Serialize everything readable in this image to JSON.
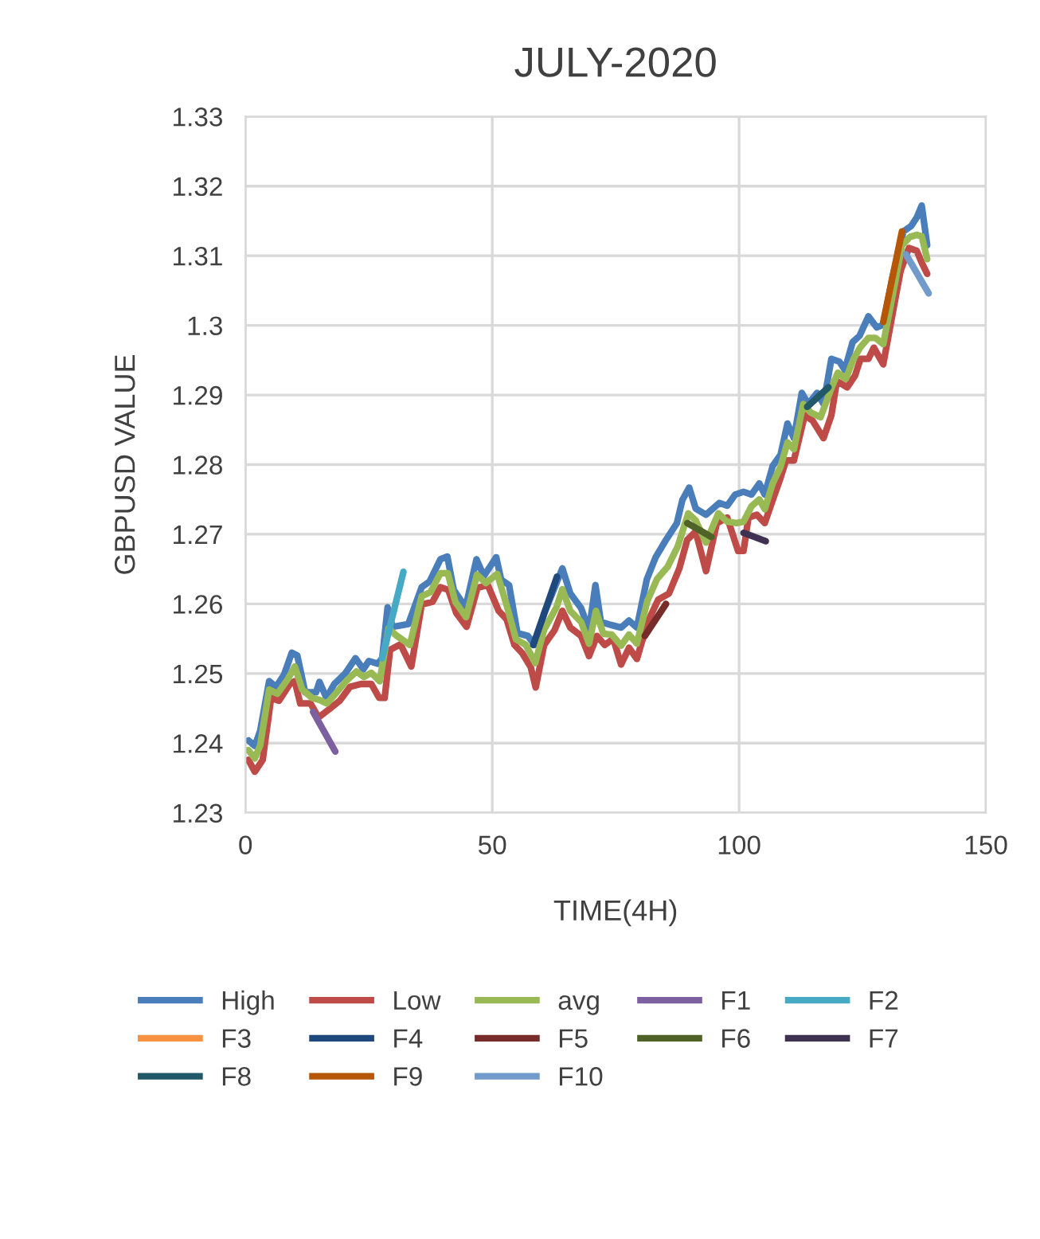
{
  "chart_data": {
    "type": "line",
    "title": "JULY-2020",
    "xlabel": "TIME(4H)",
    "ylabel": "GBPUSD VALUE",
    "xlim": [
      0,
      150
    ],
    "xticks": [
      0,
      50,
      100,
      150
    ],
    "ylim": [
      1.23,
      1.33
    ],
    "yticks": [
      1.23,
      1.24,
      1.25,
      1.26,
      1.27,
      1.28,
      1.29,
      1.3,
      1.31,
      1.32,
      1.33
    ],
    "grid": true,
    "legend": "bottom",
    "marker": "none",
    "line_style": "solid",
    "series": [
      {
        "name": "High",
        "color": "#4a7ebb",
        "x": [
          0.6,
          1.9,
          3.0,
          4.8,
          6.2,
          7.8,
          9.4,
          10.5,
          12.1,
          14.3,
          15.0,
          16.4,
          18.0,
          20.2,
          22.3,
          23.9,
          25.0,
          26.8,
          27.7,
          28.8,
          29.8,
          33.0,
          35.7,
          37.3,
          39.5,
          40.9,
          42.2,
          44.6,
          46.8,
          48.3,
          50.8,
          51.8,
          53.4,
          55.1,
          57.2,
          58.6,
          60.5,
          64.2,
          65.8,
          68.0,
          69.6,
          70.9,
          72.0,
          73.9,
          76.1,
          77.7,
          79.3,
          81.3,
          83.1,
          85.2,
          87.4,
          88.5,
          89.9,
          91.2,
          93.3,
          96.0,
          97.6,
          99.2,
          100.9,
          102.5,
          104.1,
          105.2,
          106.8,
          108.4,
          109.8,
          111.1,
          112.7,
          114.0,
          115.8,
          117.1,
          118.7,
          120.3,
          121.4,
          123.0,
          124.4,
          126.2,
          127.9,
          129.2,
          131.1,
          133.3,
          134.9,
          136.0,
          137.0,
          138.1
        ],
        "values": [
          1.2404,
          1.2396,
          1.2418,
          1.2489,
          1.2481,
          1.2498,
          1.253,
          1.2526,
          1.2473,
          1.2473,
          1.2488,
          1.2465,
          1.2485,
          1.25,
          1.2522,
          1.2506,
          1.2518,
          1.2514,
          1.2522,
          1.2595,
          1.2567,
          1.2571,
          1.2624,
          1.2632,
          1.2664,
          1.2668,
          1.262,
          1.2595,
          1.2664,
          1.264,
          1.2667,
          1.2635,
          1.2627,
          1.2558,
          1.2554,
          1.2541,
          1.2586,
          1.2651,
          1.2615,
          1.2594,
          1.2562,
          1.2627,
          1.2574,
          1.257,
          1.2566,
          1.2576,
          1.2566,
          1.2635,
          1.2667,
          1.2692,
          1.2716,
          1.2749,
          1.2767,
          1.2737,
          1.2728,
          1.2745,
          1.2741,
          1.2757,
          1.2761,
          1.2757,
          1.2773,
          1.2757,
          1.2798,
          1.2814,
          1.2859,
          1.2838,
          1.2903,
          1.2887,
          1.2903,
          1.2887,
          1.2952,
          1.2948,
          1.2936,
          1.2976,
          1.2985,
          1.3013,
          1.2997,
          1.3001,
          1.307,
          1.3135,
          1.3143,
          1.3155,
          1.3172,
          1.3115
        ]
      },
      {
        "name": "Low",
        "color": "#be4b48",
        "x": [
          0.6,
          1.9,
          3.5,
          5.2,
          6.8,
          9.0,
          10.0,
          11.1,
          13.2,
          14.8,
          17.0,
          19.1,
          21.2,
          23.4,
          25.5,
          27.1,
          28.2,
          29.3,
          31.4,
          33.6,
          35.7,
          37.9,
          39.5,
          41.1,
          42.7,
          44.8,
          47.0,
          49.1,
          51.3,
          52.9,
          54.5,
          56.1,
          57.8,
          58.8,
          60.5,
          62.6,
          64.2,
          65.8,
          68.0,
          69.6,
          71.2,
          72.8,
          74.5,
          76.1,
          77.7,
          79.3,
          81.5,
          83.6,
          85.8,
          87.9,
          89.5,
          91.2,
          93.3,
          95.5,
          97.6,
          99.8,
          100.9,
          101.9,
          103.6,
          105.2,
          106.8,
          108.4,
          109.5,
          111.1,
          113.3,
          114.9,
          117.1,
          118.7,
          119.8,
          121.9,
          123.5,
          124.6,
          126.2,
          127.3,
          129.2,
          131.1,
          132.7,
          134.4,
          136.0,
          137.0,
          138.1
        ],
        "values": [
          1.2376,
          1.2359,
          1.2376,
          1.2465,
          1.2461,
          1.2485,
          1.2489,
          1.2457,
          1.2457,
          1.2437,
          1.2449,
          1.2461,
          1.2481,
          1.2485,
          1.2485,
          1.2465,
          1.2465,
          1.2534,
          1.2542,
          1.251,
          1.2599,
          1.2603,
          1.2624,
          1.262,
          1.2587,
          1.2567,
          1.2623,
          1.2627,
          1.259,
          1.2578,
          1.2541,
          1.2529,
          1.2509,
          1.248,
          1.2541,
          1.2562,
          1.259,
          1.2566,
          1.2554,
          1.2525,
          1.2554,
          1.2541,
          1.255,
          1.2513,
          1.2537,
          1.2521,
          1.2574,
          1.2606,
          1.2615,
          1.2651,
          1.2692,
          1.2704,
          1.2647,
          1.2716,
          1.2724,
          1.2676,
          1.2676,
          1.2724,
          1.2728,
          1.2716,
          1.2749,
          1.2781,
          1.2806,
          1.2806,
          1.2871,
          1.2863,
          1.2838,
          1.2871,
          1.292,
          1.2911,
          1.2928,
          1.2952,
          1.2952,
          1.2968,
          1.2944,
          1.3017,
          1.3078,
          1.3111,
          1.3107,
          1.309,
          1.3074
        ]
      },
      {
        "name": "avg",
        "color": "#98b954",
        "x": [
          0.6,
          1.9,
          3.0,
          4.8,
          6.5,
          8.5,
          10.0,
          11.5,
          13.5,
          15.0,
          16.5,
          18.5,
          20.5,
          22.5,
          24.0,
          25.5,
          27.2,
          29.0,
          30.5,
          33.3,
          35.7,
          37.5,
          39.5,
          41.0,
          42.5,
          44.7,
          46.9,
          48.7,
          51.0,
          52.8,
          54.8,
          56.8,
          58.7,
          60.5,
          63.0,
          64.2,
          65.8,
          68.0,
          69.6,
          71.0,
          72.5,
          74.2,
          76.1,
          77.7,
          79.3,
          81.4,
          83.4,
          85.5,
          87.6,
          89.7,
          91.2,
          93.3,
          95.8,
          97.6,
          99.5,
          100.9,
          102.5,
          104.1,
          105.2,
          106.8,
          108.4,
          109.8,
          111.1,
          113.0,
          114.5,
          116.5,
          118.7,
          120.0,
          121.6,
          123.2,
          124.5,
          126.2,
          127.6,
          129.2,
          131.1,
          133.0,
          134.6,
          136.0,
          137.0,
          138.1
        ],
        "values": [
          1.239,
          1.2378,
          1.2397,
          1.2477,
          1.2471,
          1.2491,
          1.251,
          1.2477,
          1.2465,
          1.2462,
          1.2457,
          1.2473,
          1.249,
          1.2503,
          1.2495,
          1.2501,
          1.2489,
          1.2565,
          1.2555,
          1.2541,
          1.2611,
          1.2617,
          1.2644,
          1.2644,
          1.2603,
          1.2581,
          1.2642,
          1.263,
          1.2643,
          1.2601,
          1.2549,
          1.2541,
          1.2515,
          1.2563,
          1.2595,
          1.2621,
          1.259,
          1.2574,
          1.2543,
          1.259,
          1.2557,
          1.2556,
          1.254,
          1.2556,
          1.2543,
          1.2604,
          1.2636,
          1.2653,
          1.2683,
          1.273,
          1.272,
          1.2688,
          1.273,
          1.2718,
          1.2716,
          1.2718,
          1.274,
          1.275,
          1.2736,
          1.2773,
          1.2797,
          1.2832,
          1.2822,
          1.2887,
          1.2875,
          1.2868,
          1.291,
          1.2932,
          1.2923,
          1.2952,
          1.2968,
          1.2982,
          1.2982,
          1.2973,
          1.3043,
          1.3115,
          1.3127,
          1.313,
          1.3128,
          1.3095
        ]
      },
      {
        "name": "F1",
        "color": "#7d60a0",
        "x": [
          13.7,
          18.2
        ],
        "values": [
          1.2445,
          1.2388
        ]
      },
      {
        "name": "F2",
        "color": "#46aac5",
        "x": [
          27.7,
          32.0
        ],
        "values": [
          1.2522,
          1.2646
        ]
      },
      {
        "name": "F3",
        "color": "#f69240"
      },
      {
        "name": "F4",
        "color": "#1f497d",
        "x": [
          58.3,
          63.1
        ],
        "values": [
          1.2541,
          1.2639
        ]
      },
      {
        "name": "F5",
        "color": "#772c2a",
        "x": [
          80.9,
          85.2
        ],
        "values": [
          1.2554,
          1.26
        ]
      },
      {
        "name": "F6",
        "color": "#4f6228",
        "x": [
          89.5,
          94.4
        ],
        "values": [
          1.2716,
          1.2696
        ]
      },
      {
        "name": "F7",
        "color": "#3f3151",
        "x": [
          100.9,
          105.4
        ],
        "values": [
          1.2702,
          1.269
        ]
      },
      {
        "name": "F8",
        "color": "#215968",
        "x": [
          113.8,
          118.1
        ],
        "values": [
          1.2883,
          1.2911
        ]
      },
      {
        "name": "F9",
        "color": "#b65708",
        "x": [
          129.2,
          133.0
        ],
        "values": [
          1.3005,
          1.3135
        ]
      },
      {
        "name": "F10",
        "color": "#729aca",
        "x": [
          133.8,
          138.4
        ],
        "values": [
          1.3102,
          1.3046
        ]
      }
    ]
  }
}
